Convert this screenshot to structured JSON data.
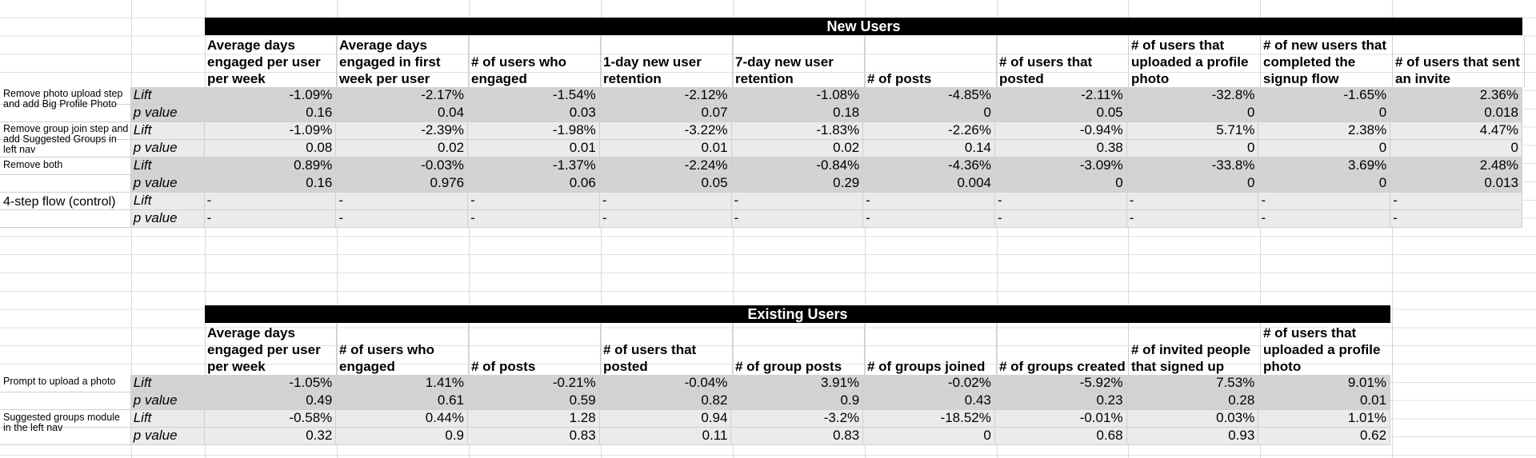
{
  "new_users": {
    "title": "New Users",
    "headers": [
      "Average days engaged per user per week",
      "Average days engaged in first week per user",
      "# of users who engaged",
      "1-day new user retention",
      "7-day new user retention",
      "# of posts",
      "# of users that posted",
      "# of users that uploaded a profile photo",
      "# of new users that completed the signup flow",
      "# of users that sent an invite"
    ],
    "groups": [
      {
        "name": "Remove photo upload step and add Big Profile Photo",
        "lift_label": "Lift",
        "p_label": "p value",
        "lift": [
          "-1.09%",
          "-2.17%",
          "-1.54%",
          "-2.12%",
          "-1.08%",
          "-4.85%",
          "-2.11%",
          "-32.8%",
          "-1.65%",
          "2.36%"
        ],
        "p": [
          "0.16",
          "0.04",
          "0.03",
          "0.07",
          "0.18",
          "0",
          "0.05",
          "0",
          "0",
          "0.018"
        ]
      },
      {
        "name": "Remove group join step and add Suggested Groups in left nav",
        "lift_label": "Lift",
        "p_label": "p value",
        "lift": [
          "-1.09%",
          "-2.39%",
          "-1.98%",
          "-3.22%",
          "-1.83%",
          "-2.26%",
          "-0.94%",
          "5.71%",
          "2.38%",
          "4.47%"
        ],
        "p": [
          "0.08",
          "0.02",
          "0.01",
          "0.01",
          "0.02",
          "0.14",
          "0.38",
          "0",
          "0",
          "0"
        ]
      },
      {
        "name": "Remove both",
        "lift_label": "Lift",
        "p_label": "p value",
        "lift": [
          "0.89%",
          "-0.03%",
          "-1.37%",
          "-2.24%",
          "-0.84%",
          "-4.36%",
          "-3.09%",
          "-33.8%",
          "3.69%",
          "2.48%"
        ],
        "p": [
          "0.16",
          "0.976",
          "0.06",
          "0.05",
          "0.29",
          "0.004",
          "0",
          "0",
          "0",
          "0.013"
        ]
      },
      {
        "name": "4-step flow (control)",
        "lift_label": "Lift",
        "p_label": "p value",
        "lift": [
          "-",
          "-",
          "-",
          "-",
          "-",
          "-",
          "-",
          "-",
          "-",
          "-"
        ],
        "p": [
          "-",
          "-",
          "-",
          "-",
          "-",
          "-",
          "-",
          "-",
          "-",
          "-"
        ]
      }
    ]
  },
  "existing_users": {
    "title": "Existing Users",
    "headers": [
      "Average days engaged per user per week",
      "# of users who engaged",
      "# of posts",
      "# of users that posted",
      "# of group posts",
      "# of groups joined",
      "# of groups created",
      "# of invited people that signed up",
      "# of users that uploaded a profile photo"
    ],
    "groups": [
      {
        "name": "Prompt to upload a photo",
        "lift_label": "Lift",
        "p_label": "p value",
        "lift": [
          "-1.05%",
          "1.41%",
          "-0.21%",
          "-0.04%",
          "3.91%",
          "-0.02%",
          "-5.92%",
          "7.53%",
          "9.01%"
        ],
        "p": [
          "0.49",
          "0.61",
          "0.59",
          "0.82",
          "0.9",
          "0.43",
          "0.23",
          "0.28",
          "0.01"
        ]
      },
      {
        "name": "Suggested groups module in the left nav",
        "lift_label": "Lift",
        "p_label": "p value",
        "lift": [
          "-0.58%",
          "0.44%",
          "1.28",
          "0.94",
          "-3.2%",
          "-18.52%",
          "-0.01%",
          "0.03%",
          "1.01%"
        ],
        "p": [
          "0.32",
          "0.9",
          "0.83",
          "0.11",
          "0.83",
          "0",
          "0.68",
          "0.93",
          "0.62"
        ]
      }
    ]
  }
}
